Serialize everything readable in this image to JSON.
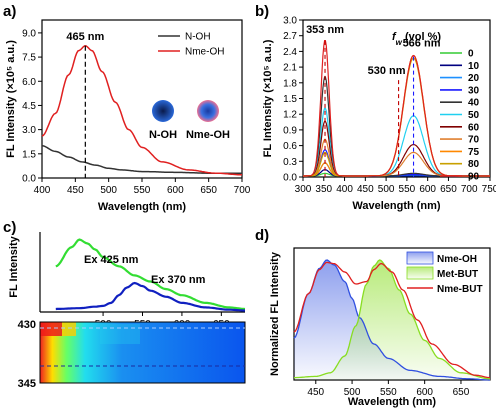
{
  "chart_data": [
    {
      "panel": "a)",
      "type": "line",
      "xlabel": "Wavelength (nm)",
      "ylabel": "FL Intensity (×10⁵ a.u.)",
      "xlim": [
        400,
        700
      ],
      "ylim": [
        0,
        9.8
      ],
      "xticks": [
        "400",
        "450",
        "500",
        "550",
        "600",
        "650",
        "700"
      ],
      "yticks": [
        "0.0",
        "1.5",
        "3.0",
        "4.5",
        "6.0",
        "7.5",
        "9.0"
      ],
      "annotation": "465 nm",
      "legend": [
        "N-OH",
        "Nme-OH"
      ],
      "inset_labels": [
        "N-OH",
        "Nme-OH"
      ],
      "series": [
        {
          "name": "N-OH",
          "color": "#333333",
          "x": [
            400,
            420,
            440,
            460,
            480,
            500,
            520,
            550,
            600,
            650,
            700
          ],
          "y": [
            2.0,
            1.65,
            1.3,
            1.0,
            0.8,
            0.6,
            0.5,
            0.4,
            0.35,
            0.3,
            0.3
          ]
        },
        {
          "name": "Nme-OH",
          "color": "#e02020",
          "x": [
            400,
            420,
            440,
            455,
            465,
            475,
            490,
            510,
            530,
            550,
            580,
            620,
            660,
            700
          ],
          "y": [
            2.6,
            4.0,
            6.4,
            7.9,
            8.2,
            7.9,
            6.6,
            4.7,
            3.0,
            1.9,
            1.0,
            0.5,
            0.3,
            0.2
          ]
        }
      ]
    },
    {
      "panel": "b)",
      "type": "line",
      "xlabel": "Wavelength (nm)",
      "ylabel": "FL Intensity (×10⁵ a.u.)",
      "xlim": [
        300,
        750
      ],
      "ylim": [
        0,
        3.0
      ],
      "xticks": [
        "300",
        "350",
        "400",
        "450",
        "500",
        "550",
        "600",
        "650",
        "700",
        "750"
      ],
      "yticks": [
        "0.0",
        "0.3",
        "0.6",
        "0.9",
        "1.2",
        "1.5",
        "1.8",
        "2.1",
        "2.4",
        "2.7",
        "3.0"
      ],
      "legend_title": "f_w (vol %)",
      "annotations": [
        "353 nm",
        "530 nm",
        "566 nm"
      ],
      "series": [
        {
          "name": "0",
          "color": "#33cc33",
          "a353": 0.05,
          "a566": 0.0
        },
        {
          "name": "10",
          "color": "#000080",
          "a353": 0.12,
          "a566": 0.0
        },
        {
          "name": "20",
          "color": "#1e90ff",
          "a353": 0.25,
          "a566": 0.02
        },
        {
          "name": "30",
          "color": "#1a1aff",
          "a353": 0.5,
          "a566": 0.03
        },
        {
          "name": "40",
          "color": "#333333",
          "a353": 1.9,
          "a566": 0.05
        },
        {
          "name": "50",
          "color": "#20d0f0",
          "a353": 1.3,
          "a566": 1.15
        },
        {
          "name": "60",
          "color": "#800000",
          "a353": 1.05,
          "a566": 0.6
        },
        {
          "name": "70",
          "color": "#e08030",
          "a353": 0.7,
          "a566": 0.45
        },
        {
          "name": "75",
          "color": "#ff8800",
          "a353": 0.25,
          "a566": 2.3
        },
        {
          "name": "80",
          "color": "#c8a000",
          "a353": 0.45,
          "a566": 2.25
        },
        {
          "name": "90",
          "color": "#e02020",
          "a353": 2.6,
          "a566": 2.3
        }
      ]
    },
    {
      "panel": "c)",
      "type": "line",
      "xlabel": "",
      "ylabel": "FL Intensity",
      "xlim": [
        420,
        680
      ],
      "xticks": [
        "500",
        "550",
        "600",
        "650"
      ],
      "heatmap_yticks": [
        "430",
        "345"
      ],
      "series": [
        {
          "name": "Ex 425 nm",
          "color": "#33dd33",
          "x": [
            440,
            460,
            470,
            480,
            490,
            500,
            520,
            540,
            560,
            580,
            600,
            630,
            660,
            680
          ],
          "y": [
            0.6,
            0.85,
            0.95,
            0.9,
            0.82,
            0.72,
            0.6,
            0.48,
            0.4,
            0.3,
            0.22,
            0.12,
            0.06,
            0.04
          ]
        },
        {
          "name": "Ex 370 nm",
          "color": "#1020c0",
          "x": [
            440,
            470,
            490,
            500,
            510,
            520,
            530,
            540,
            550,
            560,
            580,
            600,
            630,
            660,
            680
          ],
          "y": [
            0.04,
            0.05,
            0.07,
            0.08,
            0.12,
            0.22,
            0.32,
            0.38,
            0.34,
            0.28,
            0.2,
            0.12,
            0.06,
            0.03,
            0.02
          ]
        }
      ]
    },
    {
      "panel": "d)",
      "type": "area",
      "xlabel": "Wavelength (nm)",
      "ylabel": "Normalized FL Intensity",
      "xlim": [
        420,
        690
      ],
      "ylim": [
        0,
        1.1
      ],
      "xticks": [
        "450",
        "500",
        "550",
        "600",
        "650"
      ],
      "series": [
        {
          "name": "Nme-OH",
          "color": "#3050e0",
          "x": [
            420,
            440,
            455,
            465,
            475,
            490,
            500,
            510,
            530,
            550,
            580,
            620,
            660,
            690
          ],
          "y": [
            0.35,
            0.72,
            0.93,
            1.0,
            0.96,
            0.82,
            0.68,
            0.52,
            0.3,
            0.18,
            0.08,
            0.03,
            0.01,
            0.0
          ]
        },
        {
          "name": "Met-BUT",
          "color": "#88dd22",
          "x": [
            420,
            450,
            470,
            490,
            505,
            520,
            530,
            538,
            550,
            565,
            580,
            600,
            620,
            650,
            690
          ],
          "y": [
            0.02,
            0.03,
            0.06,
            0.2,
            0.45,
            0.8,
            0.95,
            1.0,
            0.93,
            0.75,
            0.55,
            0.33,
            0.18,
            0.06,
            0.01
          ]
        },
        {
          "name": "Nme-BUT",
          "color": "#e02020",
          "x": [
            420,
            440,
            455,
            465,
            475,
            490,
            505,
            520,
            530,
            540,
            555,
            570,
            590,
            610,
            640,
            670,
            690
          ],
          "y": [
            0.4,
            0.72,
            0.92,
            0.98,
            0.97,
            0.9,
            0.8,
            0.82,
            0.92,
            0.97,
            0.9,
            0.75,
            0.5,
            0.3,
            0.13,
            0.04,
            0.02
          ]
        }
      ]
    }
  ]
}
